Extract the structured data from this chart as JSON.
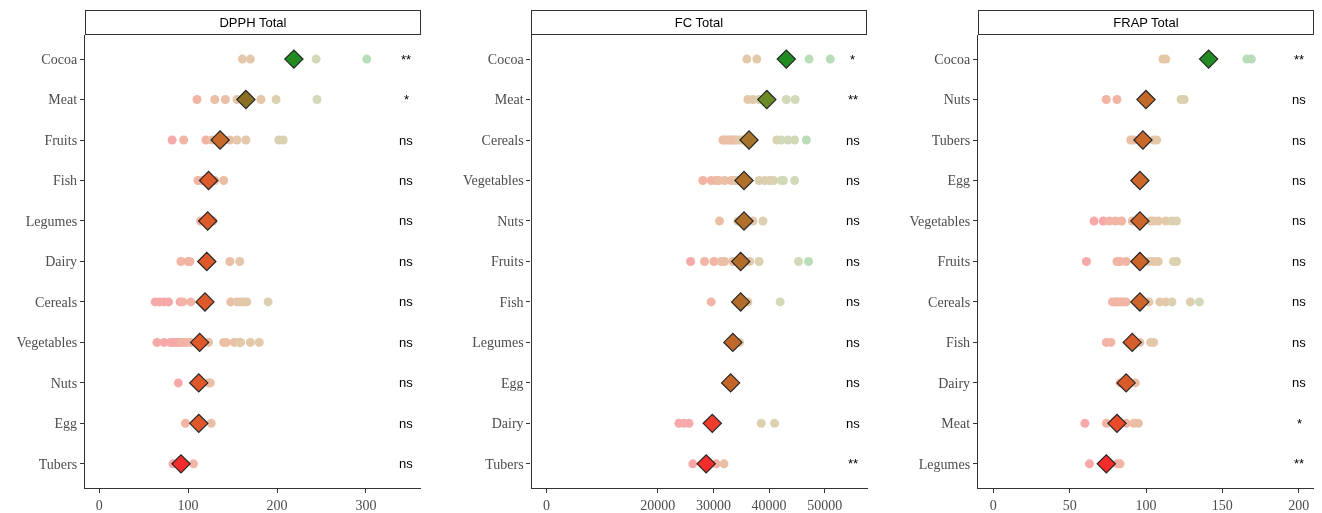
{
  "chart_data": [
    {
      "type": "scatter",
      "title": "DPPH Total",
      "orientation": "horizontal",
      "categories": [
        "Cocoa",
        "Meat",
        "Fruits",
        "Fish",
        "Legumes",
        "Dairy",
        "Cereals",
        "Vegetables",
        "Nuts",
        "Egg",
        "Tubers"
      ],
      "xlim": [
        -16,
        362
      ],
      "xticks": [
        0,
        100,
        200,
        300
      ],
      "series": [
        {
          "marker": "circle",
          "x": [
            "Cocoa",
            "Cocoa",
            "Cocoa",
            "Cocoa",
            "Meat",
            "Meat",
            "Meat",
            "Meat",
            "Meat",
            "Meat",
            "Meat",
            "Fruits",
            "Fruits",
            "Fruits",
            "Fruits",
            "Fruits",
            "Fruits",
            "Fruits",
            "Fruits",
            "Fruits",
            "Fish",
            "Fish",
            "Fish",
            "Fish",
            "Legumes",
            "Legumes",
            "Dairy",
            "Dairy",
            "Dairy",
            "Dairy",
            "Dairy",
            "Cereals",
            "Cereals",
            "Cereals",
            "Cereals",
            "Cereals",
            "Cereals",
            "Cereals",
            "Cereals",
            "Cereals",
            "Cereals",
            "Cereals",
            "Cereals",
            "Cereals",
            "Vegetables",
            "Vegetables",
            "Vegetables",
            "Vegetables",
            "Vegetables",
            "Vegetables",
            "Vegetables",
            "Vegetables",
            "Vegetables",
            "Vegetables",
            "Vegetables",
            "Vegetables",
            "Vegetables",
            "Vegetables",
            "Vegetables",
            "Vegetables",
            "Vegetables",
            "Vegetables",
            "Vegetables",
            "Nuts",
            "Nuts",
            "Nuts",
            "Egg",
            "Egg",
            "Tubers",
            "Tubers"
          ],
          "values": [
            161,
            170,
            244,
            301,
            110,
            130,
            142,
            155,
            182,
            199,
            245,
            82,
            95,
            120,
            127,
            147,
            155,
            165,
            202,
            207,
            111,
            116,
            130,
            140,
            114,
            128,
            92,
            100,
            102,
            147,
            158,
            63,
            68,
            73,
            78,
            91,
            94,
            103,
            148,
            155,
            159,
            162,
            166,
            190,
            65,
            73,
            80,
            82,
            85,
            88,
            91,
            93,
            97,
            98,
            103,
            123,
            140,
            143,
            152,
            157,
            159,
            170,
            180,
            89,
            123,
            125,
            97,
            126,
            83,
            106
          ],
          "colors": [
            "#e3c8a9",
            "#e3c8a9",
            "#d0dab9",
            "#b9dcb9",
            "#f2b4a4",
            "#ebbea6",
            "#ebbea6",
            "#e3c8a9",
            "#e3c8a9",
            "#dbd0af",
            "#d0dab9",
            "#f7a9a9",
            "#f2b4a4",
            "#f2b4a4",
            "#ebbea6",
            "#ebbea6",
            "#e3c8a9",
            "#e3c8a9",
            "#dbd0af",
            "#dbd0af",
            "#f2b4a4",
            "#f2b4a4",
            "#ebbea6",
            "#ebbea6",
            "#f2b4a4",
            "#ebbea6",
            "#f2b4a4",
            "#f2b4a4",
            "#f2b4a4",
            "#ebbea6",
            "#e3c8a9",
            "#f7a9a9",
            "#f7a9a9",
            "#f7a9a9",
            "#f7a9a9",
            "#f7a9a9",
            "#f2b4a4",
            "#f2b4a4",
            "#ebbea6",
            "#e3c8a9",
            "#e3c8a9",
            "#e3c8a9",
            "#e3c8a9",
            "#dbd0af",
            "#f7a9a9",
            "#f7a9a9",
            "#f7a9a9",
            "#f7a9a9",
            "#f7a9a9",
            "#f7a9a9",
            "#f7a9a9",
            "#f2b4a4",
            "#f2b4a4",
            "#f2b4a4",
            "#f2b4a4",
            "#ebbea6",
            "#ebbea6",
            "#ebbea6",
            "#ebbea6",
            "#e3c8a9",
            "#e3c8a9",
            "#e3c8a9",
            "#e3c8a9",
            "#f7a9a9",
            "#ebbea6",
            "#ebbea6",
            "#f2b4a4",
            "#ebbea6",
            "#f7a9a9",
            "#f2b4a4"
          ]
        },
        {
          "marker": "diamond",
          "values": [
            219,
            165,
            136,
            123,
            122,
            121,
            119,
            113,
            112,
            112,
            92
          ],
          "colors": [
            "#228b22",
            "#8b7024",
            "#c96a2a",
            "#dd5a2a",
            "#dd5a2a",
            "#dd5a2a",
            "#dd5a2a",
            "#df582a",
            "#df582a",
            "#df582a",
            "#f52c2c"
          ]
        }
      ],
      "annotations": [
        "**",
        "*",
        "ns",
        "ns",
        "ns",
        "ns",
        "ns",
        "ns",
        "ns",
        "ns",
        "ns"
      ]
    },
    {
      "type": "scatter",
      "title": "FC Total",
      "orientation": "horizontal",
      "categories": [
        "Cocoa",
        "Meat",
        "Cereals",
        "Vegetables",
        "Nuts",
        "Fruits",
        "Fish",
        "Legumes",
        "Egg",
        "Dairy",
        "Tubers"
      ],
      "xlim": [
        -2700,
        57700
      ],
      "xticks": [
        0,
        20000,
        30000,
        40000,
        50000
      ],
      "series": [
        {
          "marker": "circle",
          "x": [
            "Cocoa",
            "Cocoa",
            "Cocoa",
            "Cocoa",
            "Meat",
            "Meat",
            "Meat",
            "Meat",
            "Meat",
            "Cereals",
            "Cereals",
            "Cereals",
            "Cereals",
            "Cereals",
            "Cereals",
            "Cereals",
            "Cereals",
            "Cereals",
            "Cereals",
            "Cereals",
            "Cereals",
            "Cereals",
            "Cereals",
            "Vegetables",
            "Vegetables",
            "Vegetables",
            "Vegetables",
            "Vegetables",
            "Vegetables",
            "Vegetables",
            "Vegetables",
            "Vegetables",
            "Vegetables",
            "Vegetables",
            "Vegetables",
            "Vegetables",
            "Vegetables",
            "Vegetables",
            "Nuts",
            "Nuts",
            "Nuts",
            "Nuts",
            "Fruits",
            "Fruits",
            "Fruits",
            "Fruits",
            "Fruits",
            "Fruits",
            "Fruits",
            "Fruits",
            "Fruits",
            "Fruits",
            "Fish",
            "Fish",
            "Fish",
            "Legumes",
            "Dairy",
            "Dairy",
            "Dairy",
            "Dairy",
            "Dairy",
            "Tubers",
            "Tubers",
            "Tubers"
          ],
          "values": [
            36000,
            37800,
            47200,
            51000,
            36200,
            37100,
            38200,
            43100,
            44700,
            31700,
            32000,
            32500,
            32800,
            33200,
            33600,
            34100,
            34600,
            35200,
            41400,
            42200,
            43400,
            44600,
            46700,
            28100,
            29600,
            30500,
            31000,
            32000,
            33200,
            33800,
            34300,
            38200,
            39200,
            40100,
            40800,
            42200,
            42600,
            44600,
            31100,
            34400,
            37100,
            38900,
            25900,
            28400,
            30100,
            31400,
            32000,
            33500,
            36500,
            38200,
            45300,
            47100,
            29600,
            36200,
            42000,
            34700,
            23800,
            24700,
            25600,
            38600,
            41000,
            26300,
            30500,
            31900
          ],
          "colors": [
            "#e3c8a9",
            "#e3c8a9",
            "#b9dcb9",
            "#b9dcb9",
            "#e3c8a9",
            "#e3c8a9",
            "#dbd0af",
            "#d0dab9",
            "#d0dab9",
            "#ebbea6",
            "#ebbea6",
            "#ebbea6",
            "#ebbea6",
            "#ebbea6",
            "#ebbea6",
            "#ebbea6",
            "#e3c8a9",
            "#e3c8a9",
            "#dbd0af",
            "#d0dab9",
            "#d0dab9",
            "#d0dab9",
            "#b9dcb9",
            "#f2b4a4",
            "#f2b4a4",
            "#f2b4a4",
            "#ebbea6",
            "#ebbea6",
            "#ebbea6",
            "#ebbea6",
            "#e3c8a9",
            "#dbd0af",
            "#dbd0af",
            "#dbd0af",
            "#dbd0af",
            "#d0dab9",
            "#d0dab9",
            "#d0dab9",
            "#ebbea6",
            "#e3c8a9",
            "#e3c8a9",
            "#dbd0af",
            "#f7a9a9",
            "#f2b4a4",
            "#f2b4a4",
            "#ebbea6",
            "#ebbea6",
            "#ebbea6",
            "#e3c8a9",
            "#dbd0af",
            "#d0dab9",
            "#b9dcb9",
            "#f2b4a4",
            "#e3c8a9",
            "#d0dab9",
            "#e3c8a9",
            "#f7a9a9",
            "#f7a9a9",
            "#f7a9a9",
            "#dbd0af",
            "#dbd0af",
            "#f7a9a9",
            "#f2b4a4",
            "#ebbea6"
          ]
        },
        {
          "marker": "diamond",
          "values": [
            43100,
            39600,
            36400,
            35500,
            35500,
            34900,
            34900,
            33500,
            33100,
            29800,
            28700
          ],
          "colors": [
            "#228b22",
            "#6b8a24",
            "#a8732a",
            "#b0702a",
            "#b0702a",
            "#b36d2a",
            "#b36d2a",
            "#c0672a",
            "#c4652a",
            "#ef3c2c",
            "#f52c2c"
          ]
        }
      ],
      "annotations": [
        "*",
        "**",
        "ns",
        "ns",
        "ns",
        "ns",
        "ns",
        "ns",
        "ns",
        "ns",
        "**"
      ]
    },
    {
      "type": "scatter",
      "title": "FRAP Total",
      "orientation": "horizontal",
      "categories": [
        "Cocoa",
        "Nuts",
        "Tubers",
        "Egg",
        "Vegetables",
        "Fruits",
        "Cereals",
        "Fish",
        "Dairy",
        "Meat",
        "Legumes"
      ],
      "xlim": [
        -10,
        210
      ],
      "xticks": [
        0,
        50,
        100,
        150,
        200
      ],
      "series": [
        {
          "marker": "circle",
          "x": [
            "Cocoa",
            "Cocoa",
            "Cocoa",
            "Cocoa",
            "Nuts",
            "Nuts",
            "Nuts",
            "Nuts",
            "Tubers",
            "Tubers",
            "Tubers",
            "Tubers",
            "Vegetables",
            "Vegetables",
            "Vegetables",
            "Vegetables",
            "Vegetables",
            "Vegetables",
            "Vegetables",
            "Vegetables",
            "Vegetables",
            "Vegetables",
            "Vegetables",
            "Vegetables",
            "Fruits",
            "Fruits",
            "Fruits",
            "Fruits",
            "Fruits",
            "Fruits",
            "Fruits",
            "Fruits",
            "Fruits",
            "Cereals",
            "Cereals",
            "Cereals",
            "Cereals",
            "Cereals",
            "Cereals",
            "Cereals",
            "Cereals",
            "Cereals",
            "Cereals",
            "Cereals",
            "Cereals",
            "Cereals",
            "Fish",
            "Fish",
            "Fish",
            "Fish",
            "Fish",
            "Dairy",
            "Dairy",
            "Meat",
            "Meat",
            "Meat",
            "Meat",
            "Meat",
            "Legumes",
            "Legumes",
            "Legumes"
          ],
          "values": [
            111,
            113,
            166,
            169,
            74,
            81,
            123,
            125,
            90,
            92,
            105,
            107,
            66,
            72,
            76,
            80,
            84,
            91,
            103,
            105,
            108,
            113,
            117,
            120,
            61,
            81,
            83,
            87,
            102,
            105,
            108,
            118,
            120,
            78,
            80,
            81,
            82,
            84,
            85,
            87,
            102,
            109,
            113,
            117,
            129,
            135,
            74,
            77,
            96,
            103,
            105,
            83,
            93,
            60,
            74,
            87,
            92,
            95,
            63,
            81,
            83
          ],
          "colors": [
            "#e3c8a9",
            "#e3c8a9",
            "#b9dcb9",
            "#b9dcb9",
            "#f2b4a4",
            "#f2b4a4",
            "#dbd0af",
            "#dbd0af",
            "#ebbea6",
            "#ebbea6",
            "#e3c8a9",
            "#e3c8a9",
            "#f7a9a9",
            "#f7a9a9",
            "#f2b4a4",
            "#f2b4a4",
            "#f2b4a4",
            "#ebbea6",
            "#e3c8a9",
            "#e3c8a9",
            "#e3c8a9",
            "#e3c8a9",
            "#dbd0af",
            "#dbd0af",
            "#f7a9a9",
            "#f2b4a4",
            "#f2b4a4",
            "#f2b4a4",
            "#e3c8a9",
            "#e3c8a9",
            "#e3c8a9",
            "#dbd0af",
            "#dbd0af",
            "#f2b4a4",
            "#f2b4a4",
            "#f2b4a4",
            "#f2b4a4",
            "#f2b4a4",
            "#f2b4a4",
            "#f2b4a4",
            "#e3c8a9",
            "#e3c8a9",
            "#e3c8a9",
            "#dbd0af",
            "#dbd0af",
            "#d0dab9",
            "#f2b4a4",
            "#f2b4a4",
            "#ebbea6",
            "#e3c8a9",
            "#e3c8a9",
            "#f2b4a4",
            "#ebbea6",
            "#f7a9a9",
            "#f2b4a4",
            "#f2b4a4",
            "#ebbea6",
            "#ebbea6",
            "#f7a9a9",
            "#f2b4a4",
            "#f2b4a4"
          ]
        },
        {
          "marker": "diamond",
          "values": [
            141,
            100,
            98,
            96,
            96,
            96,
            96,
            91,
            87,
            81,
            74
          ],
          "colors": [
            "#228b22",
            "#c3692a",
            "#c8682a",
            "#cb672a",
            "#cb672a",
            "#cc662a",
            "#cc662a",
            "#d55e2a",
            "#da592a",
            "#e84a2c",
            "#f52c2c"
          ]
        }
      ],
      "annotations": [
        "**",
        "ns",
        "ns",
        "ns",
        "ns",
        "ns",
        "ns",
        "ns",
        "ns",
        "*",
        "**"
      ]
    }
  ]
}
